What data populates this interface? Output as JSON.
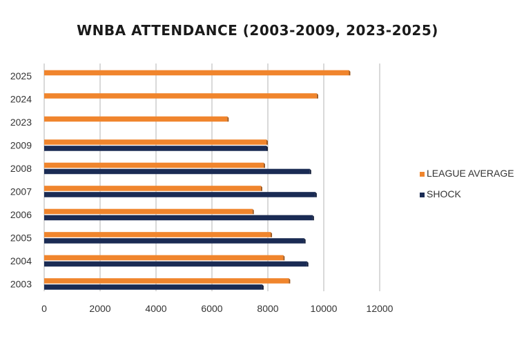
{
  "chart_data": {
    "type": "bar",
    "orientation": "horizontal",
    "title": "WNBA ATTENDANCE (2003-2009, 2023-2025)",
    "categories": [
      "2025",
      "2024",
      "2023",
      "2009",
      "2008",
      "2007",
      "2006",
      "2005",
      "2004",
      "2003"
    ],
    "series": [
      {
        "name": "LEAGUE AVERAGE",
        "color": "#f0852d",
        "values": [
          10900,
          9750,
          6550,
          7950,
          7850,
          7750,
          7450,
          8100,
          8550,
          8750
        ]
      },
      {
        "name": "SHOCK",
        "color": "#1a2b54",
        "values": [
          null,
          null,
          null,
          7950,
          9500,
          9700,
          9600,
          9300,
          9400,
          7800
        ]
      }
    ],
    "xlim": [
      0,
      12000
    ],
    "xticks": [
      "0",
      "2000",
      "4000",
      "6000",
      "8000",
      "10000",
      "12000"
    ],
    "grid": "vertical",
    "legend": "right"
  }
}
